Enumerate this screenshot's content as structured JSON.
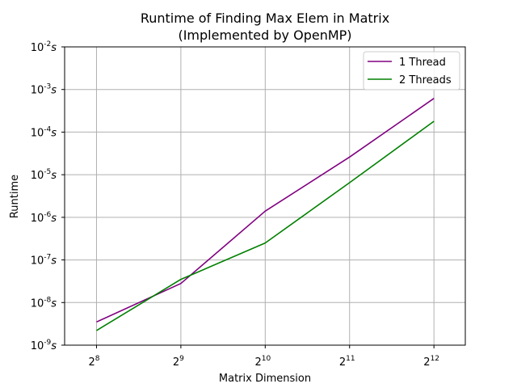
{
  "chart_data": {
    "type": "line",
    "title_line1": "Runtime of Finding Max Elem in Matrix",
    "title_line2": "(Implemented by OpenMP)",
    "xlabel": "Matrix Dimension",
    "ylabel": "Runtime",
    "x_scale": "log2",
    "y_scale": "log10",
    "x": [
      256,
      512,
      1024,
      2048,
      4096
    ],
    "x_tick_labels": [
      {
        "base": "2",
        "exp": "8"
      },
      {
        "base": "2",
        "exp": "9"
      },
      {
        "base": "2",
        "exp": "10"
      },
      {
        "base": "2",
        "exp": "11"
      },
      {
        "base": "2",
        "exp": "12"
      }
    ],
    "y_ticks": [
      {
        "exp": "-9",
        "value": 1e-09
      },
      {
        "exp": "-8",
        "value": 1e-08
      },
      {
        "exp": "-7",
        "value": 1e-07
      },
      {
        "exp": "-6",
        "value": 1e-06
      },
      {
        "exp": "-5",
        "value": 1e-05
      },
      {
        "exp": "-4",
        "value": 0.0001
      },
      {
        "exp": "-3",
        "value": 0.001
      },
      {
        "exp": "-2",
        "value": 0.01
      }
    ],
    "y_tick_base": "10",
    "y_tick_unit": "s",
    "ylim": [
      1e-09,
      0.01
    ],
    "xlim": [
      197,
      5300
    ],
    "grid": true,
    "legend_position": "top-right",
    "series": [
      {
        "name": "1 Thread",
        "color": "#800080",
        "values": [
          3.5e-09,
          2.8e-08,
          1.4e-06,
          2.6e-05,
          0.00062
        ]
      },
      {
        "name": "2 Threads",
        "color": "#008000",
        "values": [
          2.2e-09,
          3.5e-08,
          2.5e-07,
          6.5e-06,
          0.00018
        ]
      }
    ]
  }
}
